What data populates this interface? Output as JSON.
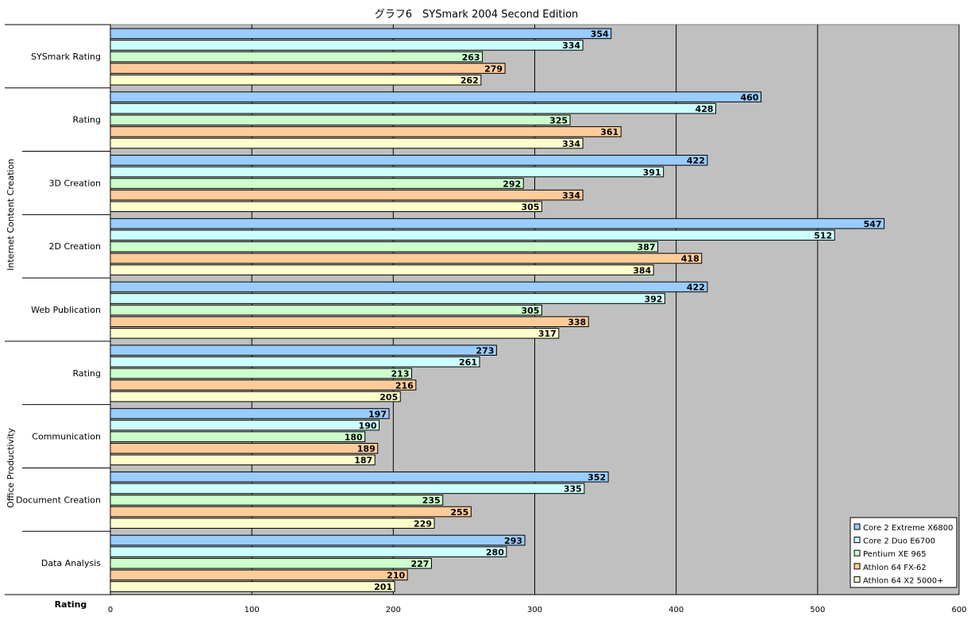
{
  "chart_data": {
    "type": "bar",
    "orientation": "horizontal",
    "title": "グラフ6　SYSmark 2004 Second Edition",
    "xlabel": "Rating",
    "xlim": [
      0,
      600
    ],
    "xticks": [
      0,
      100,
      200,
      300,
      400,
      500,
      600
    ],
    "grid": true,
    "legend_position": "bottom-right",
    "groups": [
      {
        "label": "",
        "categories": [
          "SYSmark Rating"
        ]
      },
      {
        "label": "Internet Content Creation",
        "categories": [
          "Rating",
          "3D Creation",
          "2D Creation",
          "Web Publication"
        ]
      },
      {
        "label": "Office Productivity",
        "categories": [
          "Rating",
          "Communication",
          "Document Creation",
          "Data Analysis"
        ]
      }
    ],
    "categories": [
      "SYSmark Rating",
      "Rating",
      "3D Creation",
      "2D Creation",
      "Web Publication",
      "Rating",
      "Communication",
      "Document Creation",
      "Data Analysis"
    ],
    "series": [
      {
        "name": "Core 2 Extreme X6800",
        "color": "#99ccff",
        "values": [
          354,
          460,
          422,
          547,
          422,
          273,
          197,
          352,
          293
        ]
      },
      {
        "name": "Core 2 Duo E6700",
        "color": "#ccffff",
        "values": [
          334,
          428,
          391,
          512,
          392,
          261,
          190,
          335,
          280
        ]
      },
      {
        "name": "Pentium XE 965",
        "color": "#ccffcc",
        "values": [
          263,
          325,
          292,
          387,
          305,
          213,
          180,
          235,
          227
        ]
      },
      {
        "name": "Athlon 64 FX-62",
        "color": "#ffcc99",
        "values": [
          279,
          361,
          334,
          418,
          338,
          216,
          189,
          255,
          210
        ]
      },
      {
        "name": "Athlon 64 X2 5000+",
        "color": "#ffffcc",
        "values": [
          262,
          334,
          305,
          384,
          317,
          205,
          187,
          229,
          201
        ]
      }
    ]
  }
}
